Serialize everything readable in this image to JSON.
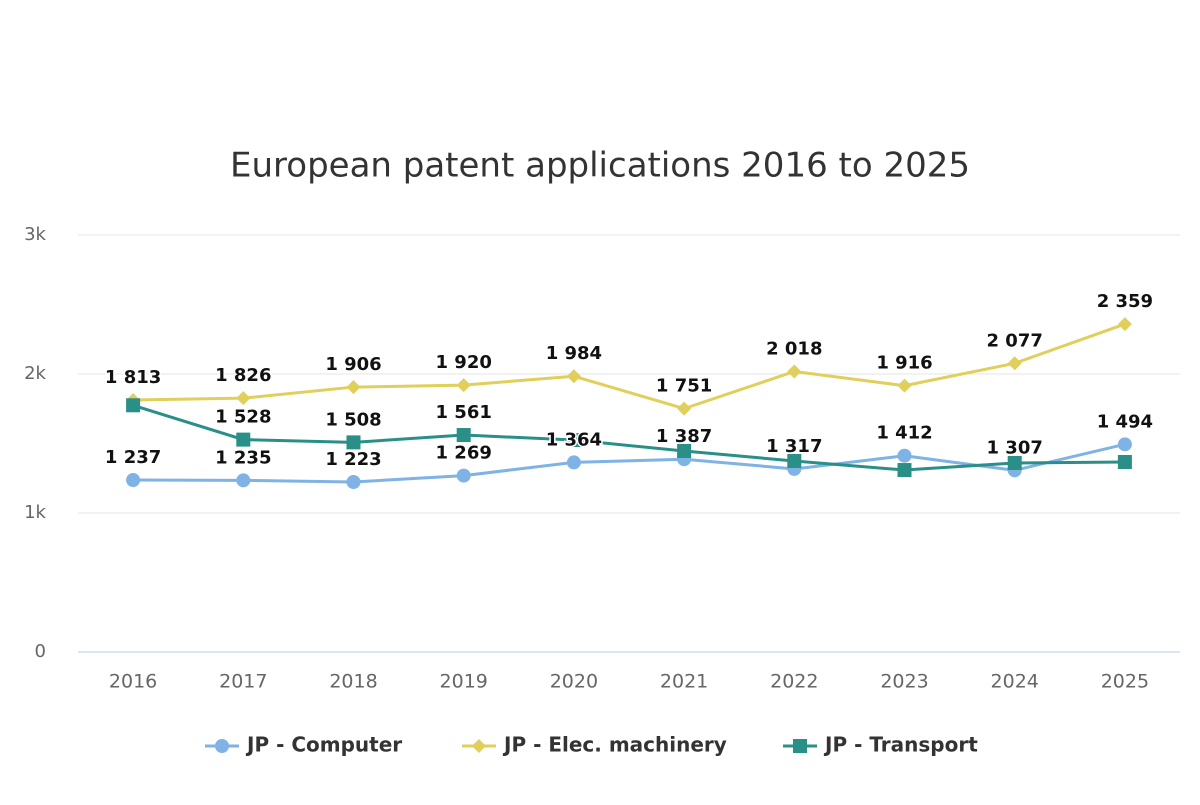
{
  "chart_data": {
    "type": "line",
    "title": "European patent applications 2016 to 2025",
    "categories": [
      "2016",
      "2017",
      "2018",
      "2019",
      "2020",
      "2021",
      "2022",
      "2023",
      "2024",
      "2025"
    ],
    "ylim": [
      0,
      3000
    ],
    "yticks": [
      0,
      {
        "value": 1000,
        "label": "1k"
      },
      {
        "value": 2000,
        "label": "2k"
      },
      {
        "value": 3000,
        "label": "3k"
      }
    ],
    "grid": true,
    "legend": "bottom",
    "series": [
      {
        "name": "JP - Computer",
        "color": "#7fb2e5",
        "marker": "circle",
        "values": [
          1237,
          1235,
          1223,
          1269,
          1364,
          1387,
          1317,
          1412,
          1307,
          1494
        ],
        "value_labels": [
          "1 237",
          "1 235",
          "1 223",
          "1 269",
          "1 364",
          "1 387",
          "1 317",
          "1 412",
          "1 307",
          "1 494"
        ]
      },
      {
        "name": "JP - Elec. machinery",
        "color": "#e0cf5a",
        "marker": "diamond",
        "values": [
          1813,
          1826,
          1906,
          1920,
          1984,
          1751,
          2018,
          1916,
          2077,
          2359
        ],
        "value_labels": [
          "1 813",
          "1 826",
          "1 906",
          "1 920",
          "1 984",
          "1 751",
          "2 018",
          "1 916",
          "2 077",
          "2 359"
        ]
      },
      {
        "name": "JP - Transport",
        "color": "#2a8f87",
        "marker": "square",
        "values": [
          1775,
          1528,
          1508,
          1561,
          1525,
          1446,
          1374,
          1309,
          1360,
          1367
        ],
        "value_labels": [
          null,
          "1 528",
          "1 508",
          "1 561",
          null,
          null,
          null,
          null,
          null,
          null
        ]
      }
    ]
  }
}
